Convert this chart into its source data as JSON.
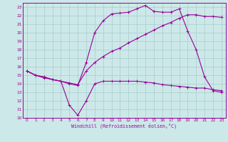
{
  "xlabel": "Windchill (Refroidissement éolien,°C)",
  "background_color": "#cce8e8",
  "grid_color": "#aacccc",
  "line_color": "#990099",
  "xlim": [
    -0.5,
    23.5
  ],
  "ylim": [
    10,
    23.5
  ],
  "yticks": [
    10,
    11,
    12,
    13,
    14,
    15,
    16,
    17,
    18,
    19,
    20,
    21,
    22,
    23
  ],
  "xticks": [
    0,
    1,
    2,
    3,
    4,
    5,
    6,
    7,
    8,
    9,
    10,
    11,
    12,
    13,
    14,
    15,
    16,
    17,
    18,
    19,
    20,
    21,
    22,
    23
  ],
  "curve1_x": [
    0,
    1,
    2,
    3,
    4,
    5,
    6,
    7,
    8,
    9,
    10,
    11,
    12,
    13,
    14,
    15,
    16,
    17,
    18,
    19,
    20,
    21,
    22,
    23
  ],
  "curve1_y": [
    15.5,
    15.0,
    14.7,
    14.5,
    14.3,
    11.5,
    10.3,
    12.0,
    14.0,
    14.3,
    14.3,
    14.3,
    14.3,
    14.3,
    14.2,
    14.1,
    13.9,
    13.8,
    13.7,
    13.6,
    13.5,
    13.5,
    13.3,
    13.2
  ],
  "curve2_x": [
    0,
    1,
    2,
    3,
    4,
    5,
    6,
    7,
    8,
    9,
    10,
    11,
    12,
    13,
    14,
    15,
    16,
    17,
    18,
    19,
    20,
    21,
    22,
    23
  ],
  "curve2_y": [
    15.5,
    15.0,
    14.8,
    14.5,
    14.3,
    14.1,
    13.9,
    15.5,
    16.5,
    17.2,
    17.8,
    18.2,
    18.8,
    19.3,
    19.8,
    20.3,
    20.8,
    21.2,
    21.7,
    22.1,
    22.1,
    21.9,
    21.9,
    21.8
  ],
  "curve3_x": [
    0,
    1,
    2,
    3,
    4,
    5,
    6,
    7,
    8,
    9,
    10,
    11,
    12,
    13,
    14,
    15,
    16,
    17,
    18,
    19,
    20,
    21,
    22,
    23
  ],
  "curve3_y": [
    15.5,
    15.0,
    14.8,
    14.5,
    14.3,
    14.0,
    13.8,
    16.5,
    20.0,
    21.4,
    22.2,
    22.3,
    22.4,
    22.8,
    23.2,
    22.5,
    22.4,
    22.4,
    22.8,
    20.2,
    18.0,
    14.8,
    13.2,
    13.0
  ]
}
